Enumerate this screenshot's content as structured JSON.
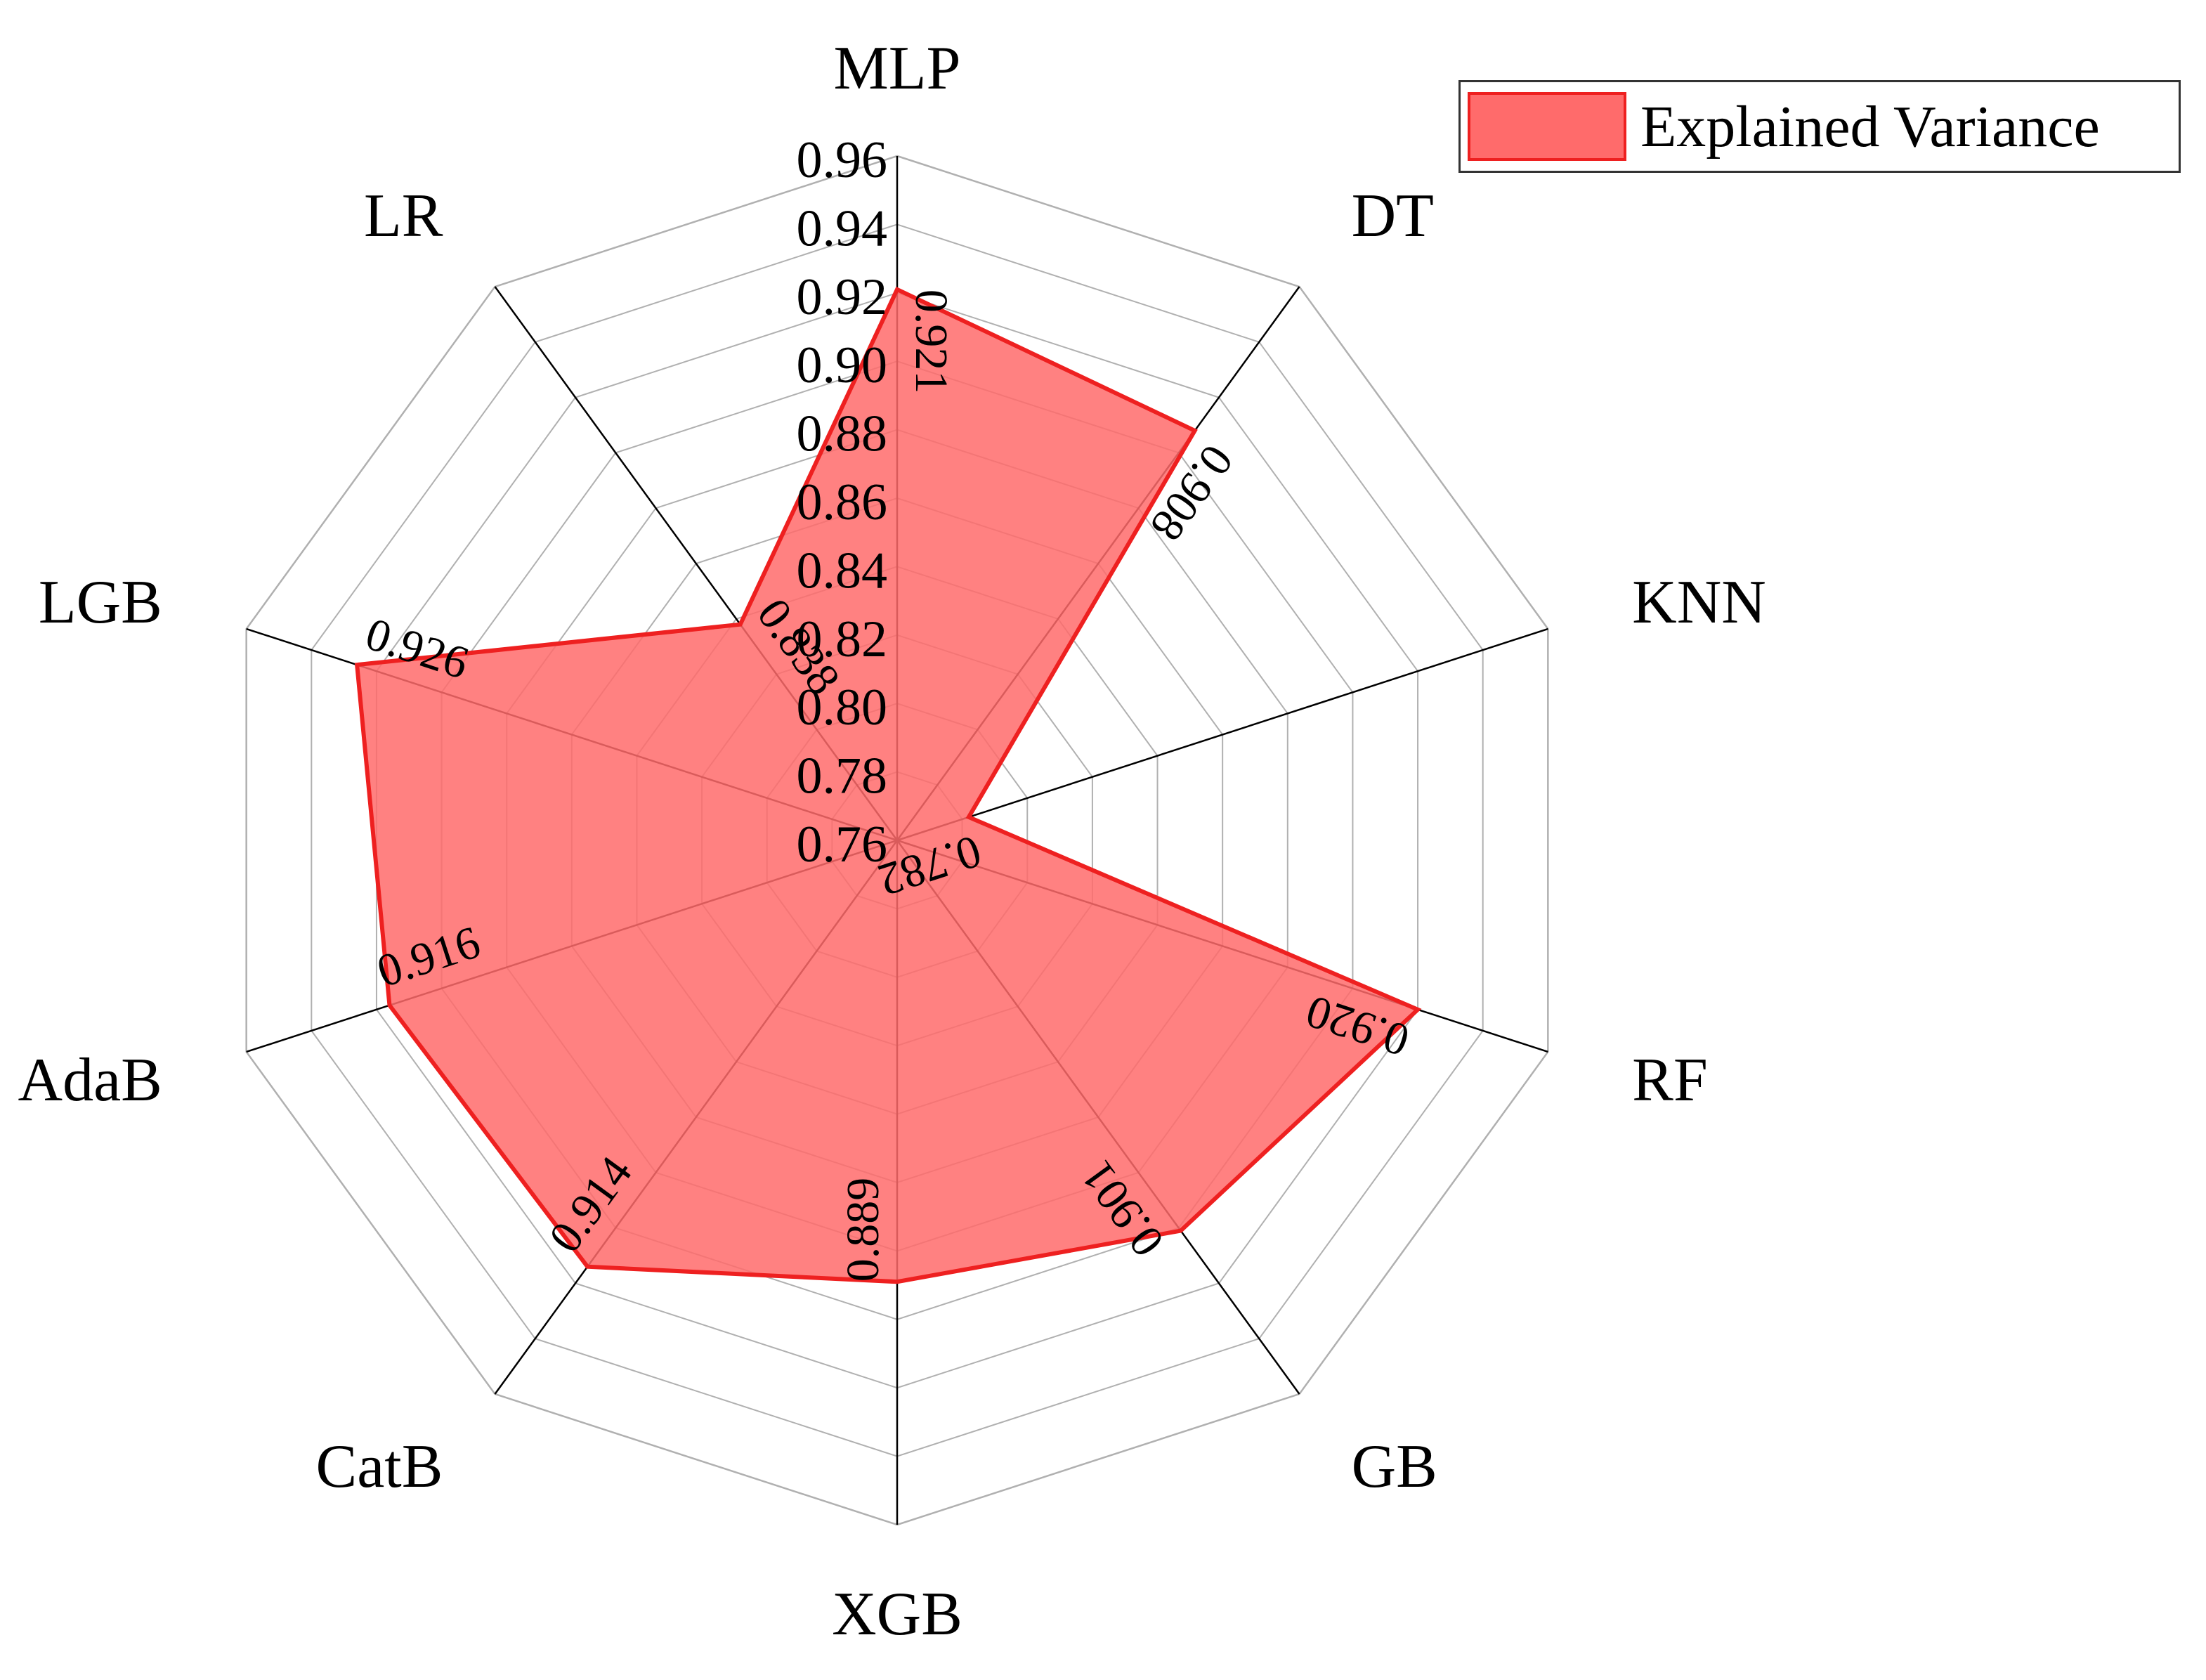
{
  "chart_data": {
    "type": "radar",
    "categories": [
      "MLP",
      "DT",
      "KNN",
      "RF",
      "GB",
      "XGB",
      "CatB",
      "AdaB",
      "LGB",
      "LR"
    ],
    "series": [
      {
        "name": "Explained Variance",
        "values": [
          0.921,
          0.908,
          0.782,
          0.92,
          0.901,
          0.889,
          0.914,
          0.916,
          0.926,
          0.838
        ],
        "labels": [
          "0.921",
          "0.908",
          "0.782",
          "0.920",
          "0.901",
          "0.889",
          "0.914",
          "0.916",
          "0.926",
          "0.838"
        ]
      }
    ],
    "radial_range": [
      0.76,
      0.96
    ],
    "radial_ticks": [
      "0.76",
      "0.78",
      "0.80",
      "0.82",
      "0.84",
      "0.86",
      "0.88",
      "0.90",
      "0.92",
      "0.94",
      "0.96"
    ],
    "grid": true,
    "legend_position": "top-right"
  },
  "colors": {
    "fill": "#ff6b6b",
    "line": "#ee2020",
    "grid": "#b0b0b0",
    "axis": "#000000"
  }
}
